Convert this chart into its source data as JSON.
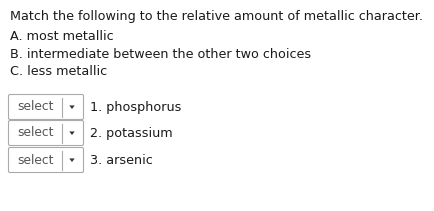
{
  "title_line": "Match the following to the relative amount of metallic character.",
  "options": [
    "A. most metallic",
    "B. intermediate between the other two choices",
    "C. less metallic"
  ],
  "items": [
    "1. phosphorus",
    "2. potassium",
    "3. arsenic"
  ],
  "select_label": "select",
  "bg_color": "#ffffff",
  "text_color": "#1a1a1a",
  "box_edge_color": "#aaaaaa",
  "divider_color": "#aaaaaa",
  "select_text_color": "#555555",
  "arrow_color": "#333333",
  "title_fontsize": 9.2,
  "body_fontsize": 9.2,
  "select_fontsize": 8.8,
  "item_fontsize": 9.2
}
